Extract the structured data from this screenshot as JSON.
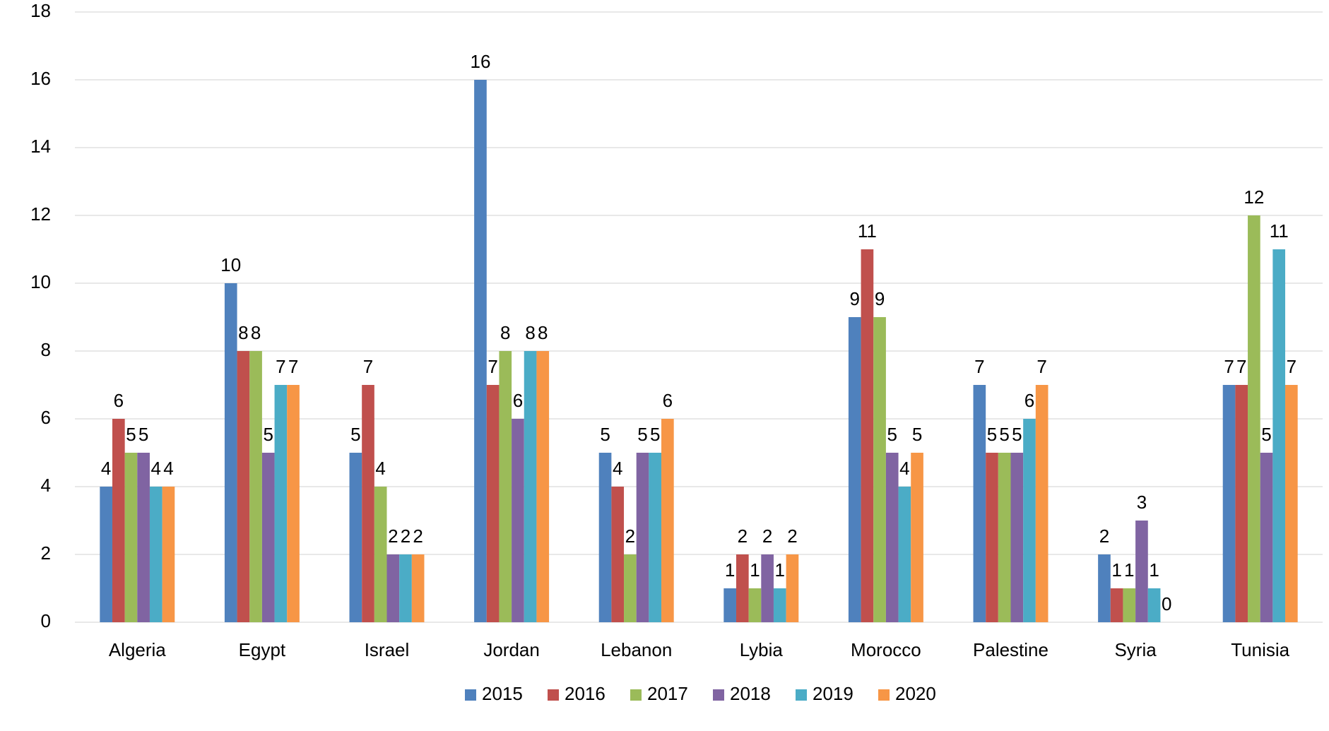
{
  "chart_data": {
    "type": "bar",
    "categories": [
      "Algeria",
      "Egypt",
      "Israel",
      "Jordan",
      "Lebanon",
      "Lybia",
      "Morocco",
      "Palestine",
      "Syria",
      "Tunisia"
    ],
    "series": [
      {
        "name": "2015",
        "color": "#4f81bd",
        "values": [
          4,
          10,
          5,
          16,
          5,
          1,
          9,
          7,
          2,
          7
        ]
      },
      {
        "name": "2016",
        "color": "#c0504d",
        "values": [
          6,
          8,
          7,
          7,
          4,
          2,
          11,
          5,
          1,
          7
        ]
      },
      {
        "name": "2017",
        "color": "#9bbb59",
        "values": [
          5,
          8,
          4,
          8,
          2,
          1,
          9,
          5,
          1,
          12
        ]
      },
      {
        "name": "2018",
        "color": "#8064a2",
        "values": [
          5,
          5,
          2,
          6,
          5,
          2,
          5,
          5,
          3,
          5
        ]
      },
      {
        "name": "2019",
        "color": "#4bacc6",
        "values": [
          4,
          7,
          2,
          8,
          5,
          1,
          4,
          6,
          1,
          11
        ]
      },
      {
        "name": "2020",
        "color": "#f79646",
        "values": [
          4,
          7,
          2,
          8,
          6,
          2,
          5,
          7,
          0,
          7
        ]
      }
    ],
    "ylim": [
      0,
      18
    ],
    "yticks": [
      0,
      2,
      4,
      6,
      8,
      10,
      12,
      14,
      16,
      18
    ],
    "grid": true,
    "legend": "bottom",
    "data_labels": true
  }
}
